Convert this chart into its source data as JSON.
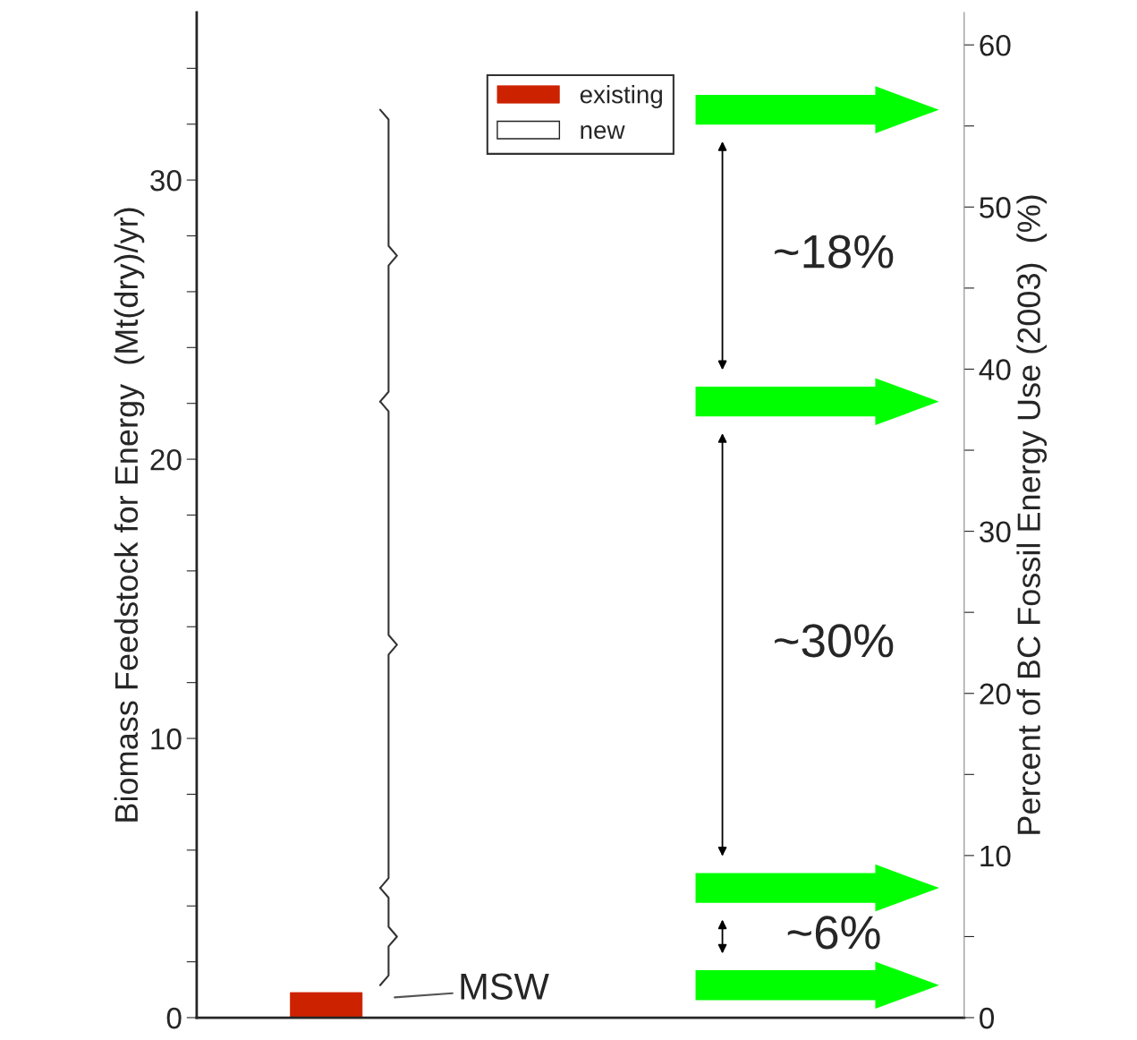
{
  "chart_data": {
    "type": "bar",
    "categories": [
      null
    ],
    "series": [
      {
        "name": "existing",
        "color": "#cc2200",
        "values": [
          0.9
        ]
      },
      {
        "name": "new",
        "color": "#ffffff",
        "values": [
          null
        ]
      }
    ],
    "ylabel": "Biomass Feedstock for Energy  (Mt(dry)/yr)",
    "y2label": "Percent of BC Fossil Energy Use (2003)  (%)",
    "ylim": [
      0,
      36
    ],
    "yticks": [
      0,
      {
        "value": 2,
        "label": null
      },
      {
        "value": 4,
        "label": null
      },
      {
        "value": 6,
        "label": null
      },
      {
        "value": 8,
        "label": null
      },
      10,
      {
        "value": 12,
        "label": null
      },
      {
        "value": 14,
        "label": null
      },
      {
        "value": 16,
        "label": null
      },
      {
        "value": 18,
        "label": null
      },
      20,
      {
        "value": 22,
        "label": null
      },
      {
        "value": 24,
        "label": null
      },
      {
        "value": 26,
        "label": null
      },
      {
        "value": 28,
        "label": null
      },
      30,
      {
        "value": 32,
        "label": null
      },
      {
        "value": 34,
        "label": null
      }
    ],
    "y2lim": [
      0,
      62
    ],
    "y2ticks": [
      0,
      {
        "value": 5,
        "label": null
      },
      10,
      {
        "value": 15,
        "label": null
      },
      20,
      {
        "value": 25,
        "label": null
      },
      30,
      {
        "value": 35,
        "label": null
      },
      40,
      {
        "value": 45,
        "label": null
      },
      50,
      {
        "value": 55,
        "label": null
      },
      60
    ],
    "ref_lines": [
      {
        "axis": "y2",
        "value": 56,
        "color": "#00ff00"
      },
      {
        "axis": "y2",
        "value": 38,
        "color": "#00ff00"
      },
      {
        "axis": "y2",
        "value": 8,
        "color": "#00ff00"
      },
      {
        "axis": "y2",
        "value": 2,
        "color": "#00ff00"
      }
    ],
    "annotations": [
      "~18%",
      "~30%",
      "~6%",
      "MSW"
    ],
    "legend": "top",
    "grid": false
  }
}
